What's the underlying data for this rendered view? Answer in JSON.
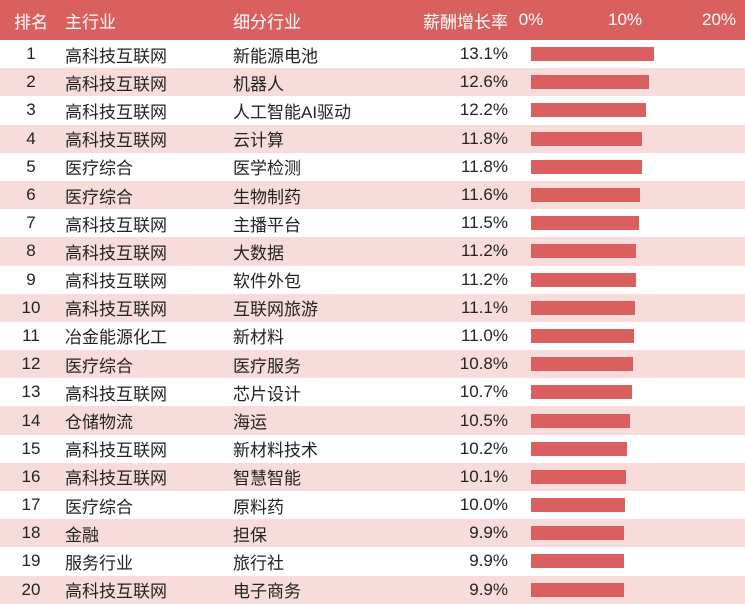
{
  "header": {
    "rank": "排名",
    "main_industry": "主行业",
    "sub_industry": "细分行业",
    "growth_rate": "薪酬增长率"
  },
  "axis": {
    "ticks": [
      "0%",
      "10%",
      "20%"
    ],
    "min_percent": 0,
    "max_percent": 20
  },
  "colors": {
    "accent_red": "#d9605f",
    "row_alt_pink": "#f8dcdc",
    "header_text": "#ffffff",
    "body_text": "#232323"
  },
  "chart_data": {
    "type": "bar",
    "title": "薪酬增长率",
    "orientation": "horizontal",
    "xlim": [
      0,
      20
    ],
    "x_tick_labels": [
      "0%",
      "10%",
      "20%"
    ],
    "grid": false,
    "legend": false,
    "rows": [
      {
        "rank": "1",
        "main": "高科技互联网",
        "sub": "新能源电池",
        "value": 13.1,
        "label": "13.1%"
      },
      {
        "rank": "2",
        "main": "高科技互联网",
        "sub": "机器人",
        "value": 12.6,
        "label": "12.6%"
      },
      {
        "rank": "3",
        "main": "高科技互联网",
        "sub": "人工智能AI驱动",
        "value": 12.2,
        "label": "12.2%"
      },
      {
        "rank": "4",
        "main": "高科技互联网",
        "sub": "云计算",
        "value": 11.8,
        "label": "11.8%"
      },
      {
        "rank": "5",
        "main": "医疗综合",
        "sub": "医学检测",
        "value": 11.8,
        "label": "11.8%"
      },
      {
        "rank": "6",
        "main": "医疗综合",
        "sub": "生物制药",
        "value": 11.6,
        "label": "11.6%"
      },
      {
        "rank": "7",
        "main": "高科技互联网",
        "sub": "主播平台",
        "value": 11.5,
        "label": "11.5%"
      },
      {
        "rank": "8",
        "main": "高科技互联网",
        "sub": "大数据",
        "value": 11.2,
        "label": "11.2%"
      },
      {
        "rank": "9",
        "main": "高科技互联网",
        "sub": "软件外包",
        "value": 11.2,
        "label": "11.2%"
      },
      {
        "rank": "10",
        "main": "高科技互联网",
        "sub": "互联网旅游",
        "value": 11.1,
        "label": "11.1%"
      },
      {
        "rank": "11",
        "main": "冶金能源化工",
        "sub": "新材料",
        "value": 11.0,
        "label": "11.0%"
      },
      {
        "rank": "12",
        "main": "医疗综合",
        "sub": "医疗服务",
        "value": 10.8,
        "label": "10.8%"
      },
      {
        "rank": "13",
        "main": "高科技互联网",
        "sub": "芯片设计",
        "value": 10.7,
        "label": "10.7%"
      },
      {
        "rank": "14",
        "main": "仓储物流",
        "sub": "海运",
        "value": 10.5,
        "label": "10.5%"
      },
      {
        "rank": "15",
        "main": "高科技互联网",
        "sub": "新材料技术",
        "value": 10.2,
        "label": "10.2%"
      },
      {
        "rank": "16",
        "main": "高科技互联网",
        "sub": "智慧智能",
        "value": 10.1,
        "label": "10.1%"
      },
      {
        "rank": "17",
        "main": "医疗综合",
        "sub": "原料药",
        "value": 10.0,
        "label": "10.0%"
      },
      {
        "rank": "18",
        "main": "金融",
        "sub": "担保",
        "value": 9.9,
        "label": "9.9%"
      },
      {
        "rank": "19",
        "main": "服务行业",
        "sub": "旅行社",
        "value": 9.9,
        "label": "9.9%"
      },
      {
        "rank": "20",
        "main": "高科技互联网",
        "sub": "电子商务",
        "value": 9.9,
        "label": "9.9%"
      }
    ]
  }
}
